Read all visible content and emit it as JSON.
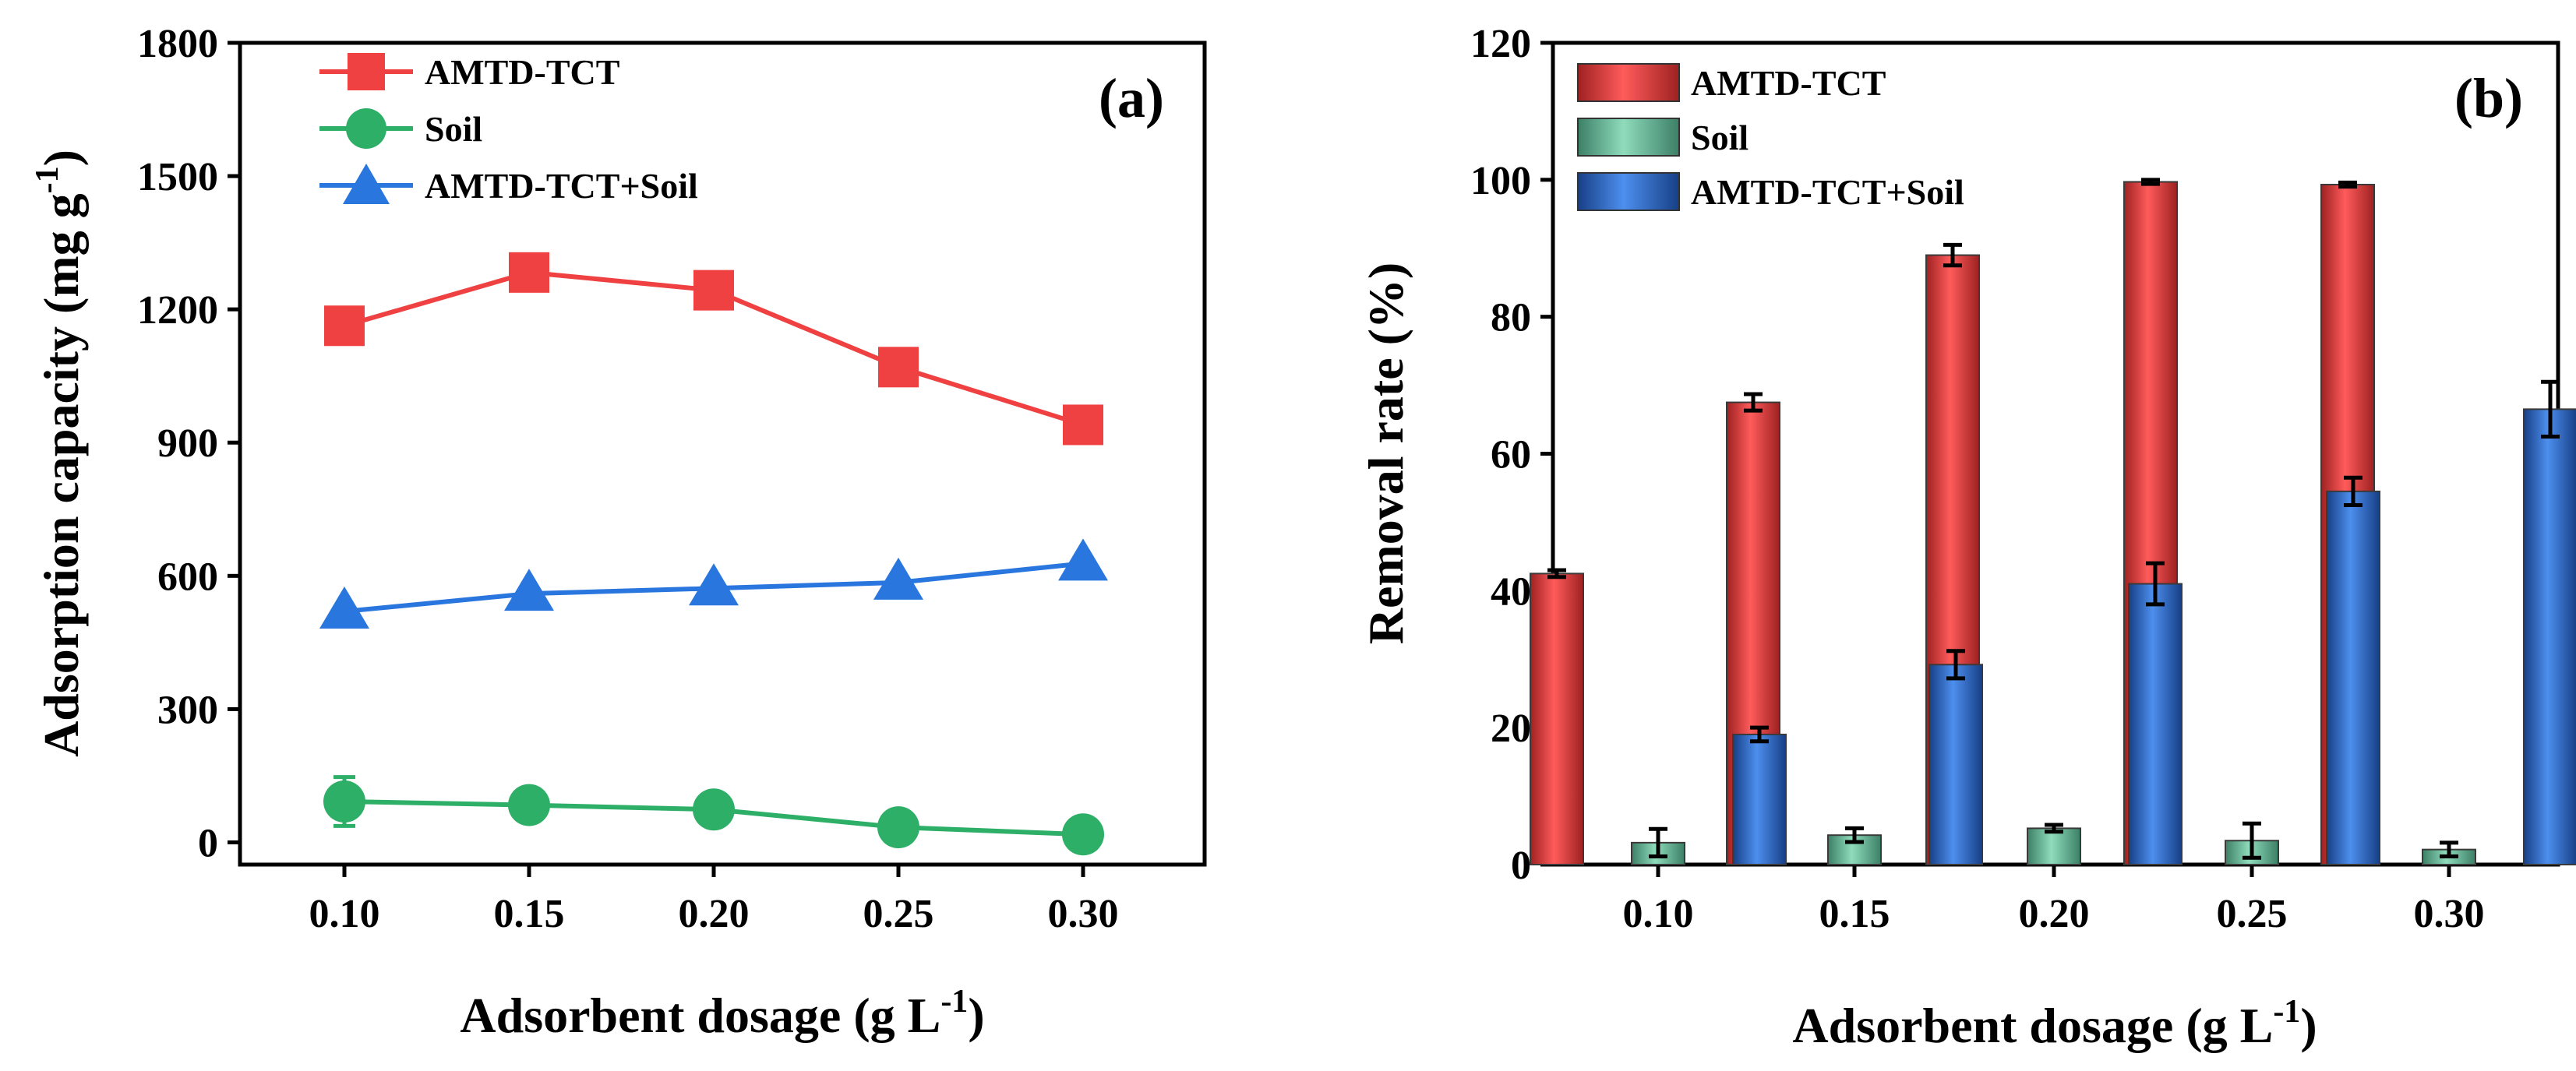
{
  "chart_data": [
    {
      "type": "line",
      "panel_label": "(a)",
      "xlabel": "Adsorbent dosage (g L",
      "xlabel_sup": "-1",
      "xlabel_close": ")",
      "ylabel": "Adsorption capacity (mg g",
      "ylabel_sup": "-1",
      "ylabel_close": ")",
      "categories": [
        "0.10",
        "0.15",
        "0.20",
        "0.25",
        "0.30"
      ],
      "ylim": [
        -50,
        1800
      ],
      "yticks": [
        0,
        300,
        600,
        900,
        1200,
        1500,
        1800
      ],
      "ytick_labels": [
        "0",
        "300",
        "600",
        "900",
        "1200",
        "1500",
        "1800"
      ],
      "legend_position": "top-left",
      "series": [
        {
          "name": "AMTD-TCT",
          "marker": "square",
          "color": "#ef4141",
          "values": [
            1163,
            1283,
            1243,
            1070,
            940
          ],
          "errors": [
            0,
            0,
            0,
            0,
            0
          ]
        },
        {
          "name": "Soil",
          "marker": "circle",
          "color": "#2daf67",
          "values": [
            92,
            84,
            74,
            34,
            18
          ],
          "errors": [
            55,
            0,
            0,
            0,
            0
          ]
        },
        {
          "name": "AMTD-TCT+Soil",
          "marker": "triangle",
          "color": "#2a76df",
          "values": [
            520,
            560,
            572,
            585,
            628
          ],
          "errors": [
            0,
            0,
            0,
            0,
            0
          ]
        }
      ]
    },
    {
      "type": "bar",
      "panel_label": "(b)",
      "xlabel": "Adsorbent dosage (g L",
      "xlabel_sup": "-1",
      "xlabel_close": ")",
      "ylabel": "Removal rate (%)",
      "categories": [
        "0.10",
        "0.15",
        "0.20",
        "0.25",
        "0.30"
      ],
      "ylim": [
        0,
        120
      ],
      "yticks": [
        0,
        20,
        40,
        60,
        80,
        100,
        120
      ],
      "ytick_labels": [
        "0",
        "20",
        "40",
        "60",
        "80",
        "100",
        "120"
      ],
      "legend_position": "top-left",
      "series": [
        {
          "name": "AMTD-TCT",
          "color": "#e23c3c",
          "values": [
            42.5,
            67.5,
            89.0,
            99.7,
            99.3
          ],
          "errors": [
            0.5,
            1.2,
            1.5,
            0.3,
            0.3
          ]
        },
        {
          "name": "Soil",
          "color": "#62b896",
          "values": [
            3.2,
            4.3,
            5.3,
            3.5,
            2.2
          ],
          "errors": [
            2.0,
            1.0,
            0.5,
            2.5,
            1.0
          ]
        },
        {
          "name": "AMTD-TCT+Soil",
          "color": "#2f6fd1",
          "values": [
            19.0,
            29.2,
            41.0,
            54.5,
            66.5
          ],
          "errors": [
            1.0,
            2.0,
            3.0,
            2.0,
            4.0
          ]
        }
      ]
    }
  ]
}
